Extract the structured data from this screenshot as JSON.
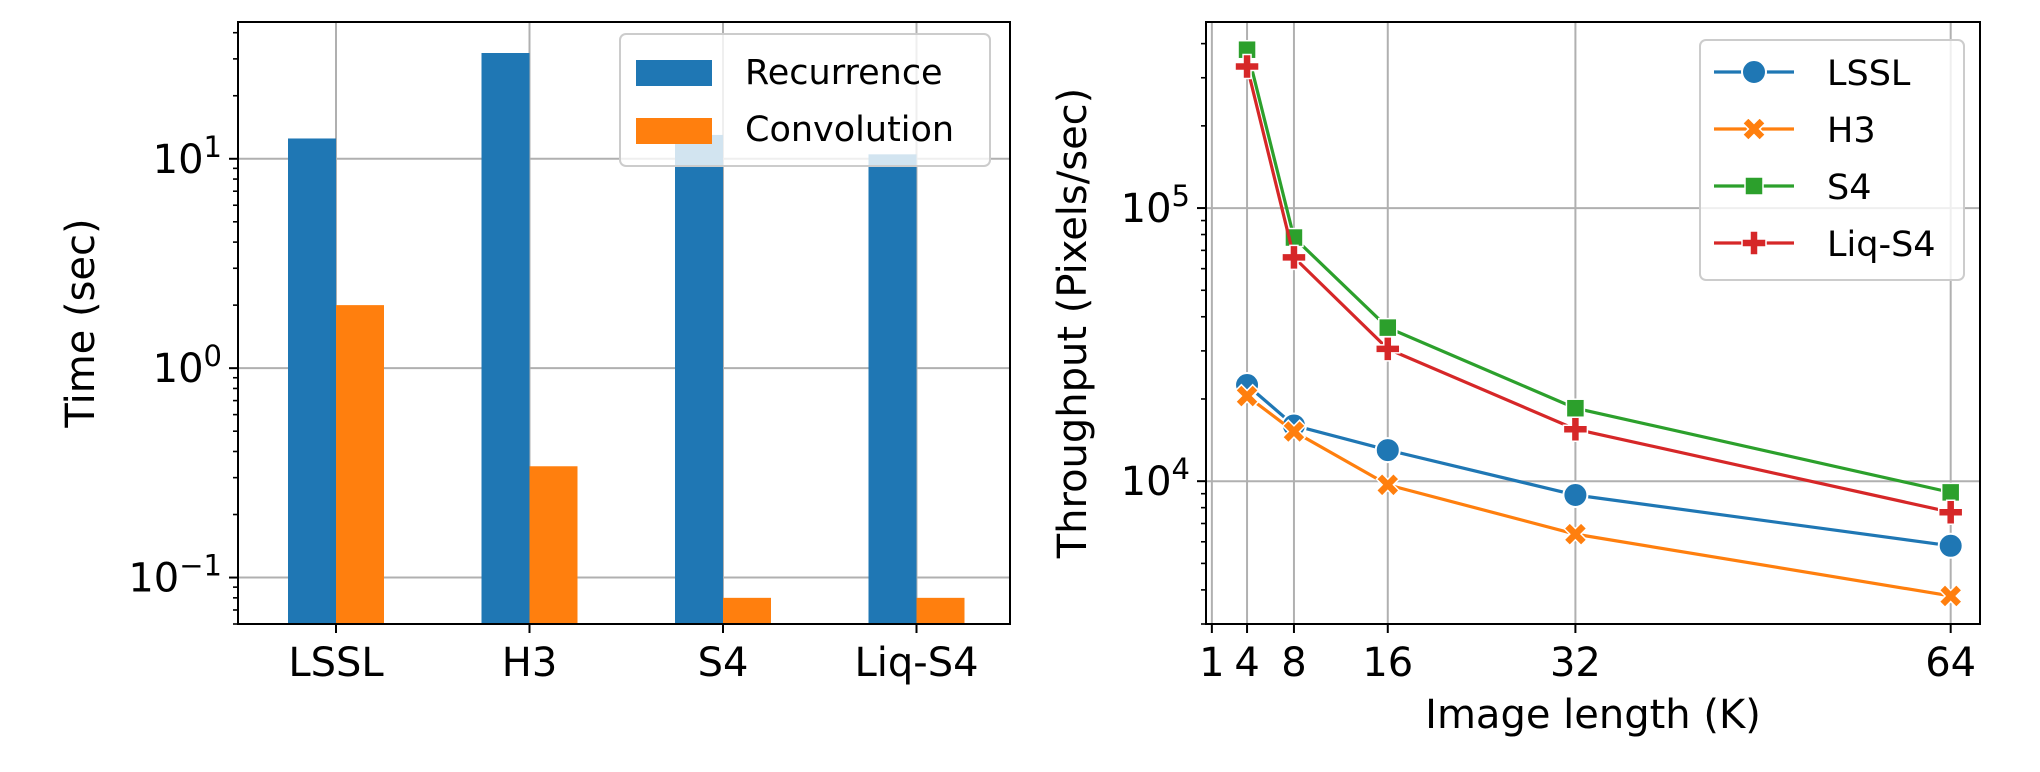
{
  "chart_data": [
    {
      "type": "bar",
      "yscale": "log",
      "categories": [
        "LSSL",
        "H3",
        "S4",
        "Liq-S4"
      ],
      "series": [
        {
          "name": "Recurrence",
          "color": "#1f77b4",
          "values": [
            12.5,
            32,
            13,
            10.5
          ]
        },
        {
          "name": "Convolution",
          "color": "#ff7f0e",
          "values": [
            2.0,
            0.34,
            0.08,
            0.08
          ]
        }
      ],
      "ylabel": "Time (sec)",
      "xlabel": "",
      "ylim": [
        0.06,
        45
      ],
      "y_ticks": [
        {
          "value": 0.1,
          "base": "10",
          "exp": "−1"
        },
        {
          "value": 1,
          "base": "10",
          "exp": "0"
        },
        {
          "value": 10,
          "base": "10",
          "exp": "1"
        }
      ],
      "grid": true,
      "legend_position": "top-right"
    },
    {
      "type": "line",
      "yscale": "log",
      "x": [
        4,
        8,
        16,
        32,
        64
      ],
      "series": [
        {
          "name": "LSSL",
          "color": "#1f77b4",
          "marker": "circle",
          "values": [
            22500,
            16000,
            13000,
            8900,
            5800
          ]
        },
        {
          "name": "H3",
          "color": "#ff7f0e",
          "marker": "x",
          "values": [
            20500,
            15200,
            9700,
            6400,
            3800
          ]
        },
        {
          "name": "S4",
          "color": "#2ca02c",
          "marker": "square",
          "values": [
            380000,
            78000,
            36500,
            18500,
            9100
          ]
        },
        {
          "name": "Liq-S4",
          "color": "#d62728",
          "marker": "plus",
          "values": [
            330000,
            66000,
            30500,
            15500,
            7700
          ]
        }
      ],
      "xlabel": "Image length (K)",
      "ylabel": "Throughput (Pixels/sec)",
      "xlim": [
        0.5,
        66.5
      ],
      "ylim": [
        3000,
        480000
      ],
      "x_ticks": [
        1,
        4,
        8,
        16,
        32,
        64
      ],
      "y_ticks": [
        {
          "value": 10000,
          "base": "10",
          "exp": "4"
        },
        {
          "value": 100000,
          "base": "10",
          "exp": "5"
        }
      ],
      "grid": true,
      "legend_position": "top-right"
    }
  ]
}
